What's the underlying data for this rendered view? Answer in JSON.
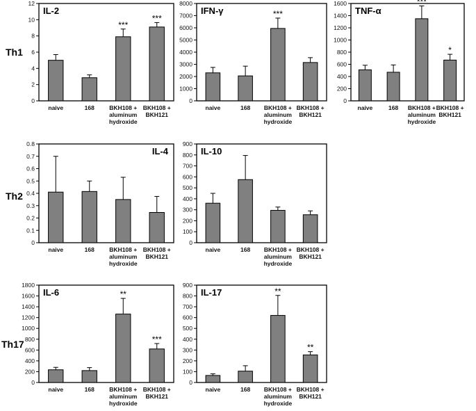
{
  "row_labels": [
    "Th1",
    "Th2",
    "Th17"
  ],
  "chart_data": [
    {
      "type": "bar",
      "title": "IL-2",
      "row": "Th1",
      "categories": [
        [
          "naive"
        ],
        [
          "168"
        ],
        [
          "BKH108 +",
          "aluminum",
          "hydroxide"
        ],
        [
          "BKH108 +",
          "BKH121"
        ]
      ],
      "values": [
        5.0,
        2.85,
        7.9,
        9.1
      ],
      "errors": [
        0.7,
        0.35,
        0.95,
        0.55
      ],
      "significance": [
        "",
        "",
        "***",
        "***"
      ],
      "ylim": [
        0,
        12
      ],
      "yticks": [
        0,
        2,
        4,
        6,
        8,
        10,
        12
      ],
      "bar_color": "#808080",
      "title_position": "left"
    },
    {
      "type": "bar",
      "title": "IFN-γ",
      "row": "Th1",
      "categories": [
        [
          "naive"
        ],
        [
          "168"
        ],
        [
          "BKH108 +",
          "aluminum",
          "hydroxide"
        ],
        [
          "BKH108 +",
          "BKH121"
        ]
      ],
      "values": [
        2300,
        2050,
        5950,
        3150
      ],
      "errors": [
        450,
        800,
        850,
        400
      ],
      "significance": [
        "",
        "",
        "***",
        ""
      ],
      "ylim": [
        0,
        8000
      ],
      "yticks": [
        0,
        1000,
        2000,
        3000,
        4000,
        5000,
        6000,
        7000,
        8000
      ],
      "bar_color": "#808080",
      "title_position": "left"
    },
    {
      "type": "bar",
      "title": "TNF-α",
      "row": "Th1",
      "categories": [
        [
          "naive"
        ],
        [
          "168"
        ],
        [
          "BKH108 +",
          "aluminum",
          "hydroxide"
        ],
        [
          "BKH108 +",
          "BKH121"
        ]
      ],
      "values": [
        510,
        470,
        1350,
        670
      ],
      "errors": [
        75,
        120,
        210,
        95
      ],
      "significance": [
        "",
        "",
        "***",
        "*"
      ],
      "ylim": [
        0,
        1600
      ],
      "yticks": [
        0,
        200,
        400,
        600,
        800,
        1000,
        1200,
        1400,
        1600
      ],
      "bar_color": "#808080",
      "title_position": "left"
    },
    {
      "type": "bar",
      "title": "IL-4",
      "row": "Th2",
      "categories": [
        [
          "naive"
        ],
        [
          "168"
        ],
        [
          "BKH108 +",
          "aluminum",
          "hydroxide"
        ],
        [
          "BKH108 +",
          "BKH121"
        ]
      ],
      "values": [
        0.41,
        0.415,
        0.35,
        0.245
      ],
      "errors": [
        0.29,
        0.085,
        0.18,
        0.13
      ],
      "significance": [
        "",
        "",
        "",
        ""
      ],
      "ylim": [
        0,
        0.8
      ],
      "yticks": [
        0,
        0.1,
        0.2,
        0.3,
        0.4,
        0.5,
        0.6,
        0.7,
        0.8
      ],
      "bar_color": "#808080",
      "title_position": "right"
    },
    {
      "type": "bar",
      "title": "IL-10",
      "row": "Th2",
      "categories": [
        [
          "naive"
        ],
        [
          "168"
        ],
        [
          "BKH108 +",
          "aluminum",
          "hydroxide"
        ],
        [
          "BKH108 +",
          "BKH121"
        ]
      ],
      "values": [
        360,
        575,
        295,
        255
      ],
      "errors": [
        90,
        220,
        30,
        35
      ],
      "significance": [
        "",
        "",
        "",
        ""
      ],
      "ylim": [
        0,
        900
      ],
      "yticks": [
        0,
        100,
        200,
        300,
        400,
        500,
        600,
        700,
        800,
        900
      ],
      "bar_color": "#808080",
      "title_position": "left"
    },
    {
      "type": "bar",
      "title": "IL-6",
      "row": "Th17",
      "categories": [
        [
          "naive"
        ],
        [
          "168"
        ],
        [
          "BKH108 +",
          "aluminum",
          "hydroxide"
        ],
        [
          "BKH108 +",
          "BKH121"
        ]
      ],
      "values": [
        235,
        220,
        1265,
        620
      ],
      "errors": [
        45,
        55,
        290,
        100
      ],
      "significance": [
        "",
        "",
        "**",
        "***"
      ],
      "ylim": [
        0,
        1800
      ],
      "yticks": [
        0,
        200,
        400,
        600,
        800,
        1000,
        1200,
        1400,
        1600,
        1800
      ],
      "bar_color": "#808080",
      "title_position": "left"
    },
    {
      "type": "bar",
      "title": "IL-17",
      "row": "Th17",
      "categories": [
        [
          "naive"
        ],
        [
          "168"
        ],
        [
          "BKH108 +",
          "aluminum",
          "hydroxide"
        ],
        [
          "BKH108 +",
          "BKH121"
        ]
      ],
      "values": [
        65,
        105,
        620,
        255
      ],
      "errors": [
        15,
        50,
        185,
        30
      ],
      "significance": [
        "",
        "",
        "**",
        "**"
      ],
      "ylim": [
        0,
        900
      ],
      "yticks": [
        0,
        100,
        200,
        300,
        400,
        500,
        600,
        700,
        800,
        900
      ],
      "bar_color": "#808080",
      "title_position": "left"
    }
  ]
}
